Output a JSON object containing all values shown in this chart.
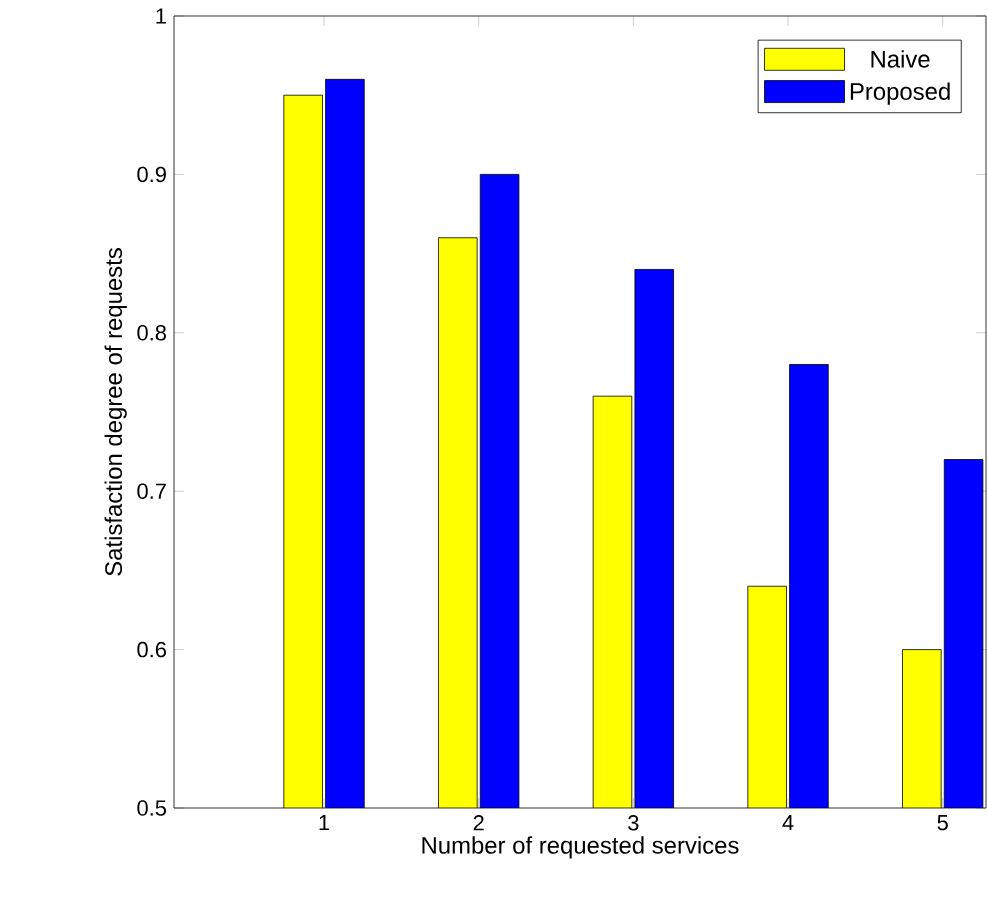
{
  "chart_data": {
    "type": "bar",
    "xlabel": "Number of requested services",
    "ylabel": "Satisfaction degree of requests",
    "categories": [
      "1",
      "2",
      "3",
      "4",
      "5"
    ],
    "series": [
      {
        "name": "Naive",
        "color": "#ffff00",
        "values": [
          0.95,
          0.86,
          0.76,
          0.64,
          0.6
        ]
      },
      {
        "name": "Proposed",
        "color": "#0000ff",
        "values": [
          0.96,
          0.9,
          0.84,
          0.78,
          0.72
        ]
      }
    ],
    "ylim": [
      0.5,
      1
    ],
    "yticks": [
      0.5,
      0.6,
      0.7,
      0.8,
      0.9,
      1
    ],
    "legend": "top right"
  }
}
